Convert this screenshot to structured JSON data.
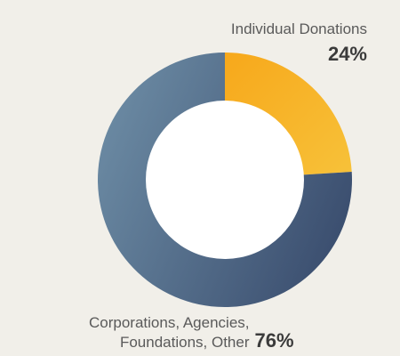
{
  "chart_data": {
    "type": "pie",
    "donut": true,
    "slices": [
      {
        "label": "Individual Donations",
        "value": 24,
        "value_label": "24%",
        "color_start": "#f7a81b",
        "color_end": "#f7c23a"
      },
      {
        "label_line1": "Corporations, Agencies,",
        "label_line2": "Foundations, Other",
        "value": 76,
        "value_label": "76%",
        "color_start": "#6b8aa3",
        "color_end": "#3a4d6e"
      }
    ]
  },
  "colors": {
    "background": "#f1efe9",
    "hole": "#ffffff",
    "text": "#5a5a5a",
    "percent_text": "#3b3b3b"
  }
}
